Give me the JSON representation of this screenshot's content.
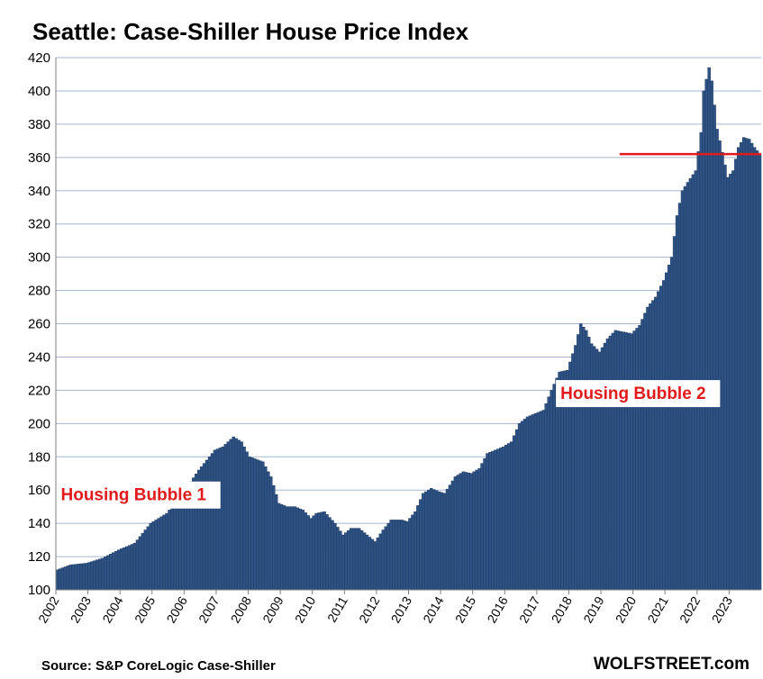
{
  "chart_data": {
    "type": "bar",
    "title": "Seattle: Case-Shiller House Price Index",
    "xlabel": "",
    "ylabel": "",
    "ylim": [
      100,
      420
    ],
    "yticks": [
      100,
      120,
      140,
      160,
      180,
      200,
      220,
      240,
      260,
      280,
      300,
      320,
      340,
      360,
      380,
      400,
      420
    ],
    "x_tick_labels": [
      "2002",
      "2003",
      "2004",
      "2005",
      "2006",
      "2007",
      "2008",
      "2009",
      "2010",
      "2011",
      "2012",
      "2013",
      "2014",
      "2015",
      "2016",
      "2017",
      "2018",
      "2019",
      "2020",
      "2021",
      "2022",
      "2023"
    ],
    "grid": true,
    "frequency": "monthly",
    "start": "2002-01",
    "end": "2023-12",
    "anchors": [
      [
        "2002-01",
        112
      ],
      [
        "2002-06",
        115
      ],
      [
        "2002-12",
        116
      ],
      [
        "2003-06",
        119
      ],
      [
        "2003-12",
        124
      ],
      [
        "2004-06",
        128
      ],
      [
        "2004-12",
        140
      ],
      [
        "2005-06",
        146
      ],
      [
        "2005-12",
        158
      ],
      [
        "2006-06",
        172
      ],
      [
        "2006-12",
        184
      ],
      [
        "2007-03",
        186
      ],
      [
        "2007-07",
        192
      ],
      [
        "2007-10",
        189
      ],
      [
        "2008-01",
        180
      ],
      [
        "2008-06",
        177
      ],
      [
        "2008-09",
        168
      ],
      [
        "2008-12",
        152
      ],
      [
        "2009-03",
        150
      ],
      [
        "2009-06",
        150
      ],
      [
        "2009-09",
        148
      ],
      [
        "2009-12",
        143
      ],
      [
        "2010-02",
        146
      ],
      [
        "2010-05",
        147
      ],
      [
        "2010-09",
        140
      ],
      [
        "2010-12",
        133
      ],
      [
        "2011-03",
        137
      ],
      [
        "2011-06",
        137
      ],
      [
        "2011-09",
        133
      ],
      [
        "2011-12",
        129
      ],
      [
        "2012-03",
        136
      ],
      [
        "2012-06",
        142
      ],
      [
        "2012-10",
        142
      ],
      [
        "2012-12",
        141
      ],
      [
        "2013-03",
        147
      ],
      [
        "2013-06",
        158
      ],
      [
        "2013-09",
        161
      ],
      [
        "2013-12",
        159
      ],
      [
        "2014-02",
        158
      ],
      [
        "2014-06",
        168
      ],
      [
        "2014-09",
        171
      ],
      [
        "2014-12",
        170
      ],
      [
        "2015-03",
        173
      ],
      [
        "2015-06",
        182
      ],
      [
        "2015-12",
        186
      ],
      [
        "2016-03",
        189
      ],
      [
        "2016-06",
        200
      ],
      [
        "2016-09",
        204
      ],
      [
        "2016-12",
        206
      ],
      [
        "2017-03",
        208
      ],
      [
        "2017-06",
        220
      ],
      [
        "2017-09",
        231
      ],
      [
        "2017-12",
        232
      ],
      [
        "2018-01",
        237
      ],
      [
        "2018-03",
        247
      ],
      [
        "2018-05",
        260
      ],
      [
        "2018-07",
        256
      ],
      [
        "2018-09",
        248
      ],
      [
        "2018-12",
        243
      ],
      [
        "2019-03",
        251
      ],
      [
        "2019-06",
        256
      ],
      [
        "2019-09",
        255
      ],
      [
        "2019-12",
        254
      ],
      [
        "2020-03",
        259
      ],
      [
        "2020-06",
        270
      ],
      [
        "2020-09",
        276
      ],
      [
        "2020-12",
        286
      ],
      [
        "2021-03",
        300
      ],
      [
        "2021-05",
        325
      ],
      [
        "2021-07",
        340
      ],
      [
        "2021-09",
        345
      ],
      [
        "2021-12",
        352
      ],
      [
        "2022-02",
        375
      ],
      [
        "2022-03",
        400
      ],
      [
        "2022-05",
        414
      ],
      [
        "2022-06",
        406
      ],
      [
        "2022-08",
        377
      ],
      [
        "2022-10",
        363
      ],
      [
        "2022-12",
        348
      ],
      [
        "2023-02",
        352
      ],
      [
        "2023-04",
        366
      ],
      [
        "2023-06",
        372
      ],
      [
        "2023-08",
        371
      ],
      [
        "2023-10",
        366
      ],
      [
        "2023-12",
        362
      ]
    ],
    "reference_line": {
      "value": 362,
      "from": "2019-08",
      "to": "2023-12",
      "color": "#e31a1c"
    },
    "annotations": [
      {
        "text": "Housing Bubble 1",
        "date": "2002-01",
        "value": 157,
        "color": "#e31a1c"
      },
      {
        "text": "Housing Bubble 2",
        "date": "2017-08",
        "value": 218,
        "color": "#e31a1c"
      }
    ],
    "colors": {
      "bar": "#2e5283",
      "bar_edge": "#1d3a63",
      "grid": "#a6b6cf",
      "reference": "#e31a1c"
    }
  },
  "footer": {
    "source": "Source: S&P CoreLogic Case-Shiller",
    "brand": "WOLFSTREET.com"
  }
}
